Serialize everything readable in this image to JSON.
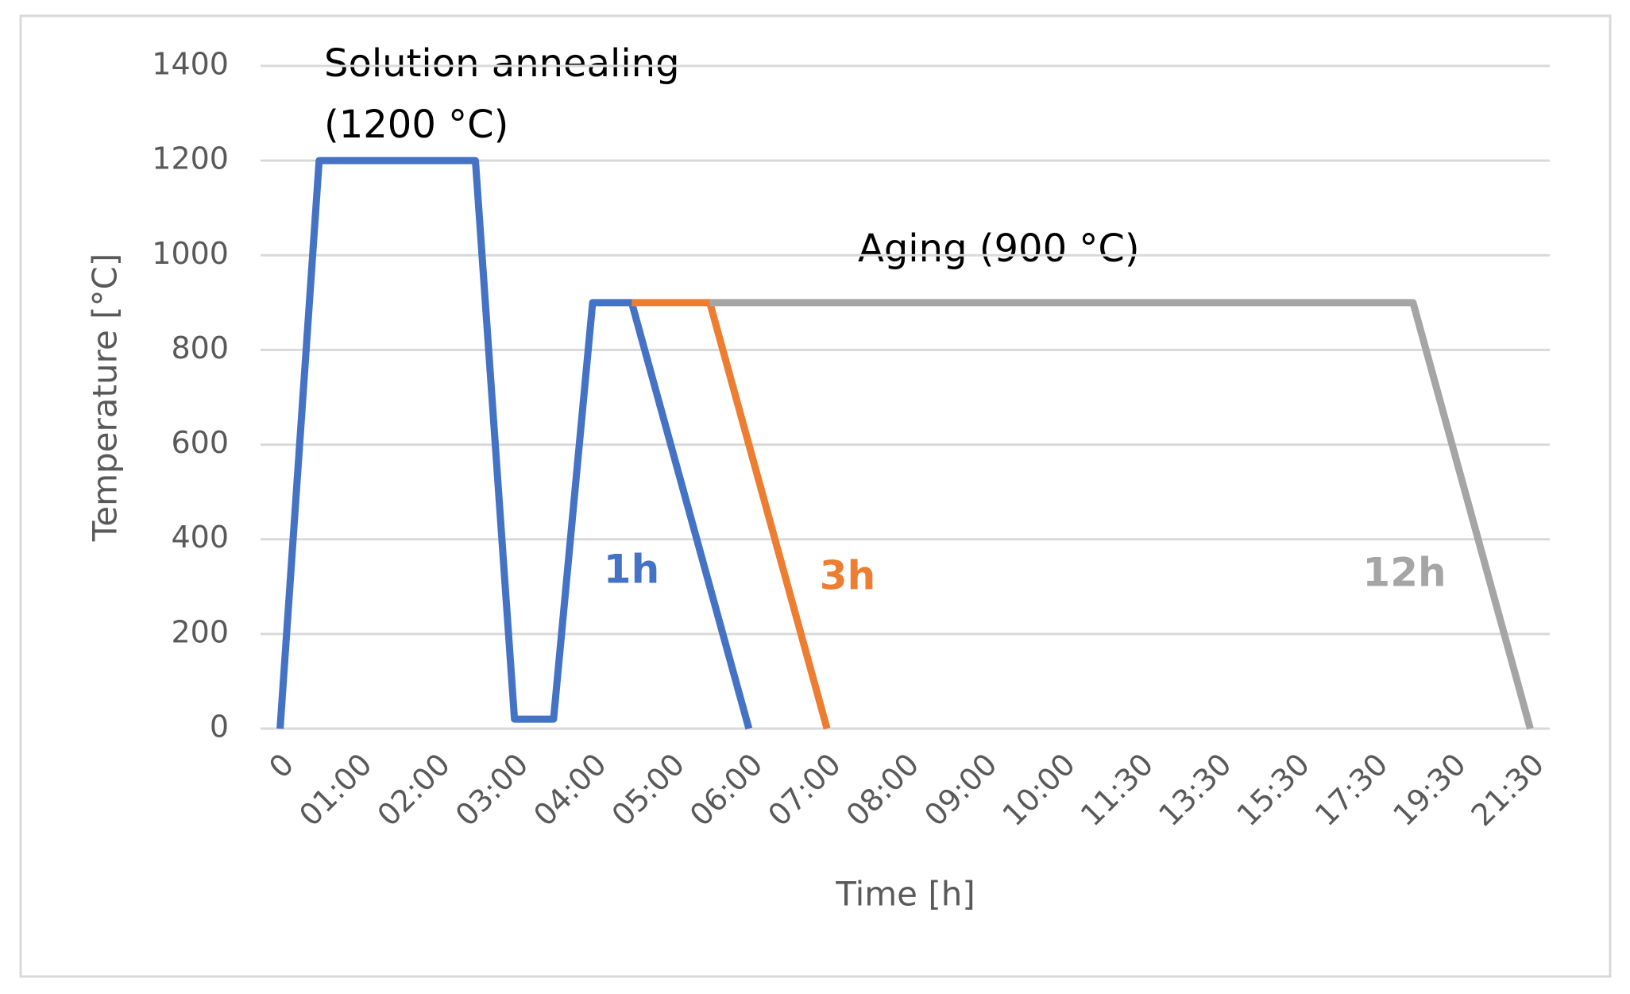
{
  "chart_data": {
    "type": "line",
    "x_label": "Time [h]",
    "y_label": "Temperature [°C]",
    "annotations": [
      "Solution annealing",
      "(1200 °C)",
      "Aging (900 °C)"
    ],
    "categories": [
      "0",
      null,
      "01:00",
      null,
      "02:00",
      null,
      "03:00",
      null,
      "04:00",
      null,
      "05:00",
      null,
      "06:00",
      null,
      "07:00",
      null,
      "08:00",
      null,
      "09:00",
      null,
      "10:00",
      null,
      "11:30",
      null,
      "13:30",
      null,
      "15:30",
      null,
      "17:30",
      null,
      "19:30",
      null,
      "21:30"
    ],
    "series": [
      {
        "name": "1h",
        "color": "#4472c4",
        "values": [
          0,
          1200,
          1200,
          1200,
          1200,
          1200,
          20,
          20,
          900,
          900,
          600,
          300,
          0,
          null,
          null,
          null,
          null,
          null,
          null,
          null,
          null,
          null,
          null,
          null,
          null,
          null,
          null,
          null,
          null,
          null,
          null,
          null,
          null
        ]
      },
      {
        "name": "3h",
        "color": "#ed7d31",
        "values": [
          null,
          null,
          null,
          null,
          null,
          null,
          null,
          null,
          null,
          900,
          900,
          900,
          600,
          300,
          0,
          null,
          null,
          null,
          null,
          null,
          null,
          null,
          null,
          null,
          null,
          null,
          null,
          null,
          null,
          null,
          null,
          null,
          null
        ]
      },
      {
        "name": "12h",
        "color": "#a5a5a5",
        "values": [
          null,
          null,
          null,
          null,
          null,
          null,
          null,
          null,
          null,
          null,
          null,
          900,
          900,
          900,
          900,
          900,
          900,
          900,
          900,
          900,
          900,
          900,
          900,
          900,
          900,
          900,
          900,
          900,
          900,
          900,
          600,
          300,
          0
        ]
      }
    ],
    "ylim": [
      0,
      1400
    ],
    "yticks": [
      0,
      200,
      400,
      600,
      800,
      1000,
      1200,
      1400
    ],
    "grid": true
  }
}
